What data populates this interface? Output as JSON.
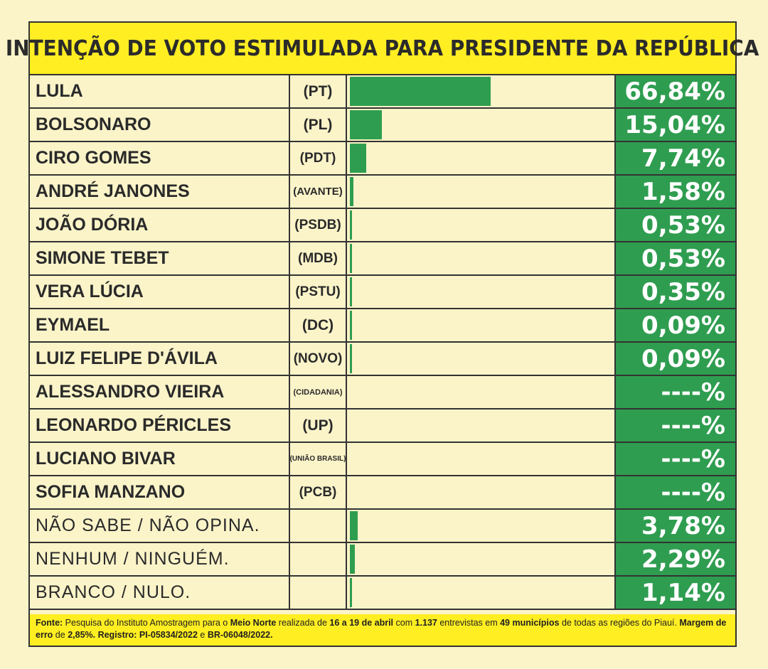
{
  "chart_data": {
    "type": "bar",
    "title": "INTENÇÃO DE VOTO ESTIMULADA PARA PRESIDENTE DA REPÚBLICA",
    "max": 100,
    "rows": [
      {
        "name": "LULA",
        "party": "(PT)",
        "value": 66.84,
        "label": "66,84%",
        "bold": true
      },
      {
        "name": "BOLSONARO",
        "party": "(PL)",
        "value": 15.04,
        "label": "15,04%",
        "bold": true
      },
      {
        "name": "CIRO GOMES",
        "party": "(PDT)",
        "value": 7.74,
        "label": "7,74%",
        "bold": true
      },
      {
        "name": "ANDRÉ JANONES",
        "party": "(AVANTE)",
        "value": 1.58,
        "label": "1,58%",
        "bold": true
      },
      {
        "name": "JOÃO DÓRIA",
        "party": "(PSDB)",
        "value": 0.53,
        "label": "0,53%",
        "bold": true
      },
      {
        "name": "SIMONE TEBET",
        "party": "(MDB)",
        "value": 0.53,
        "label": "0,53%",
        "bold": true
      },
      {
        "name": "VERA LÚCIA",
        "party": "(PSTU)",
        "value": 0.35,
        "label": "0,35%",
        "bold": true
      },
      {
        "name": "EYMAEL",
        "party": "(DC)",
        "value": 0.09,
        "label": "0,09%",
        "bold": true
      },
      {
        "name": "LUIZ FELIPE D'ÁVILA",
        "party": "(NOVO)",
        "value": 0.09,
        "label": "0,09%",
        "bold": true
      },
      {
        "name": "ALESSANDRO VIEIRA",
        "party": "(CIDADANIA)",
        "value": 0,
        "label": "----%",
        "bold": true
      },
      {
        "name": "LEONARDO PÉRICLES",
        "party": "(UP)",
        "value": 0,
        "label": "----%",
        "bold": true
      },
      {
        "name": "LUCIANO BIVAR",
        "party": "(UNIÃO BRASIL)",
        "value": 0,
        "label": "----%",
        "bold": true
      },
      {
        "name": "SOFIA MANZANO",
        "party": "(PCB)",
        "value": 0,
        "label": "----%",
        "bold": true
      },
      {
        "name": "NÃO SABE / NÃO OPINA.",
        "party": "",
        "value": 3.78,
        "label": "3,78%",
        "bold": false
      },
      {
        "name": "NENHUM / NINGUÉM.",
        "party": "",
        "value": 2.29,
        "label": "2,29%",
        "bold": false
      },
      {
        "name": "BRANCO / NULO.",
        "party": "",
        "value": 1.14,
        "label": "1,14%",
        "bold": false
      }
    ]
  },
  "footer": {
    "fonte_label": "Fonte:",
    "t1": " Pesquisa do Instituto Amostragem para o ",
    "b1": "Meio Norte",
    "t2": " realizada de ",
    "b2": "16 a 19 de abril",
    "t3": " com ",
    "b3": "1.137",
    "t4": " entrevistas em ",
    "b4": "49 municípios",
    "t5": " de todas as regiões do Piauí. ",
    "b5": "Margem de erro",
    "t6": " de ",
    "b6": "2,85%. Registro: PI-05834/2022",
    "t7": " e ",
    "b7": "BR-06048/2022."
  },
  "colors": {
    "title_bg": "#ffee22",
    "bar": "#2f9d50",
    "background": "#fbf4c9"
  }
}
